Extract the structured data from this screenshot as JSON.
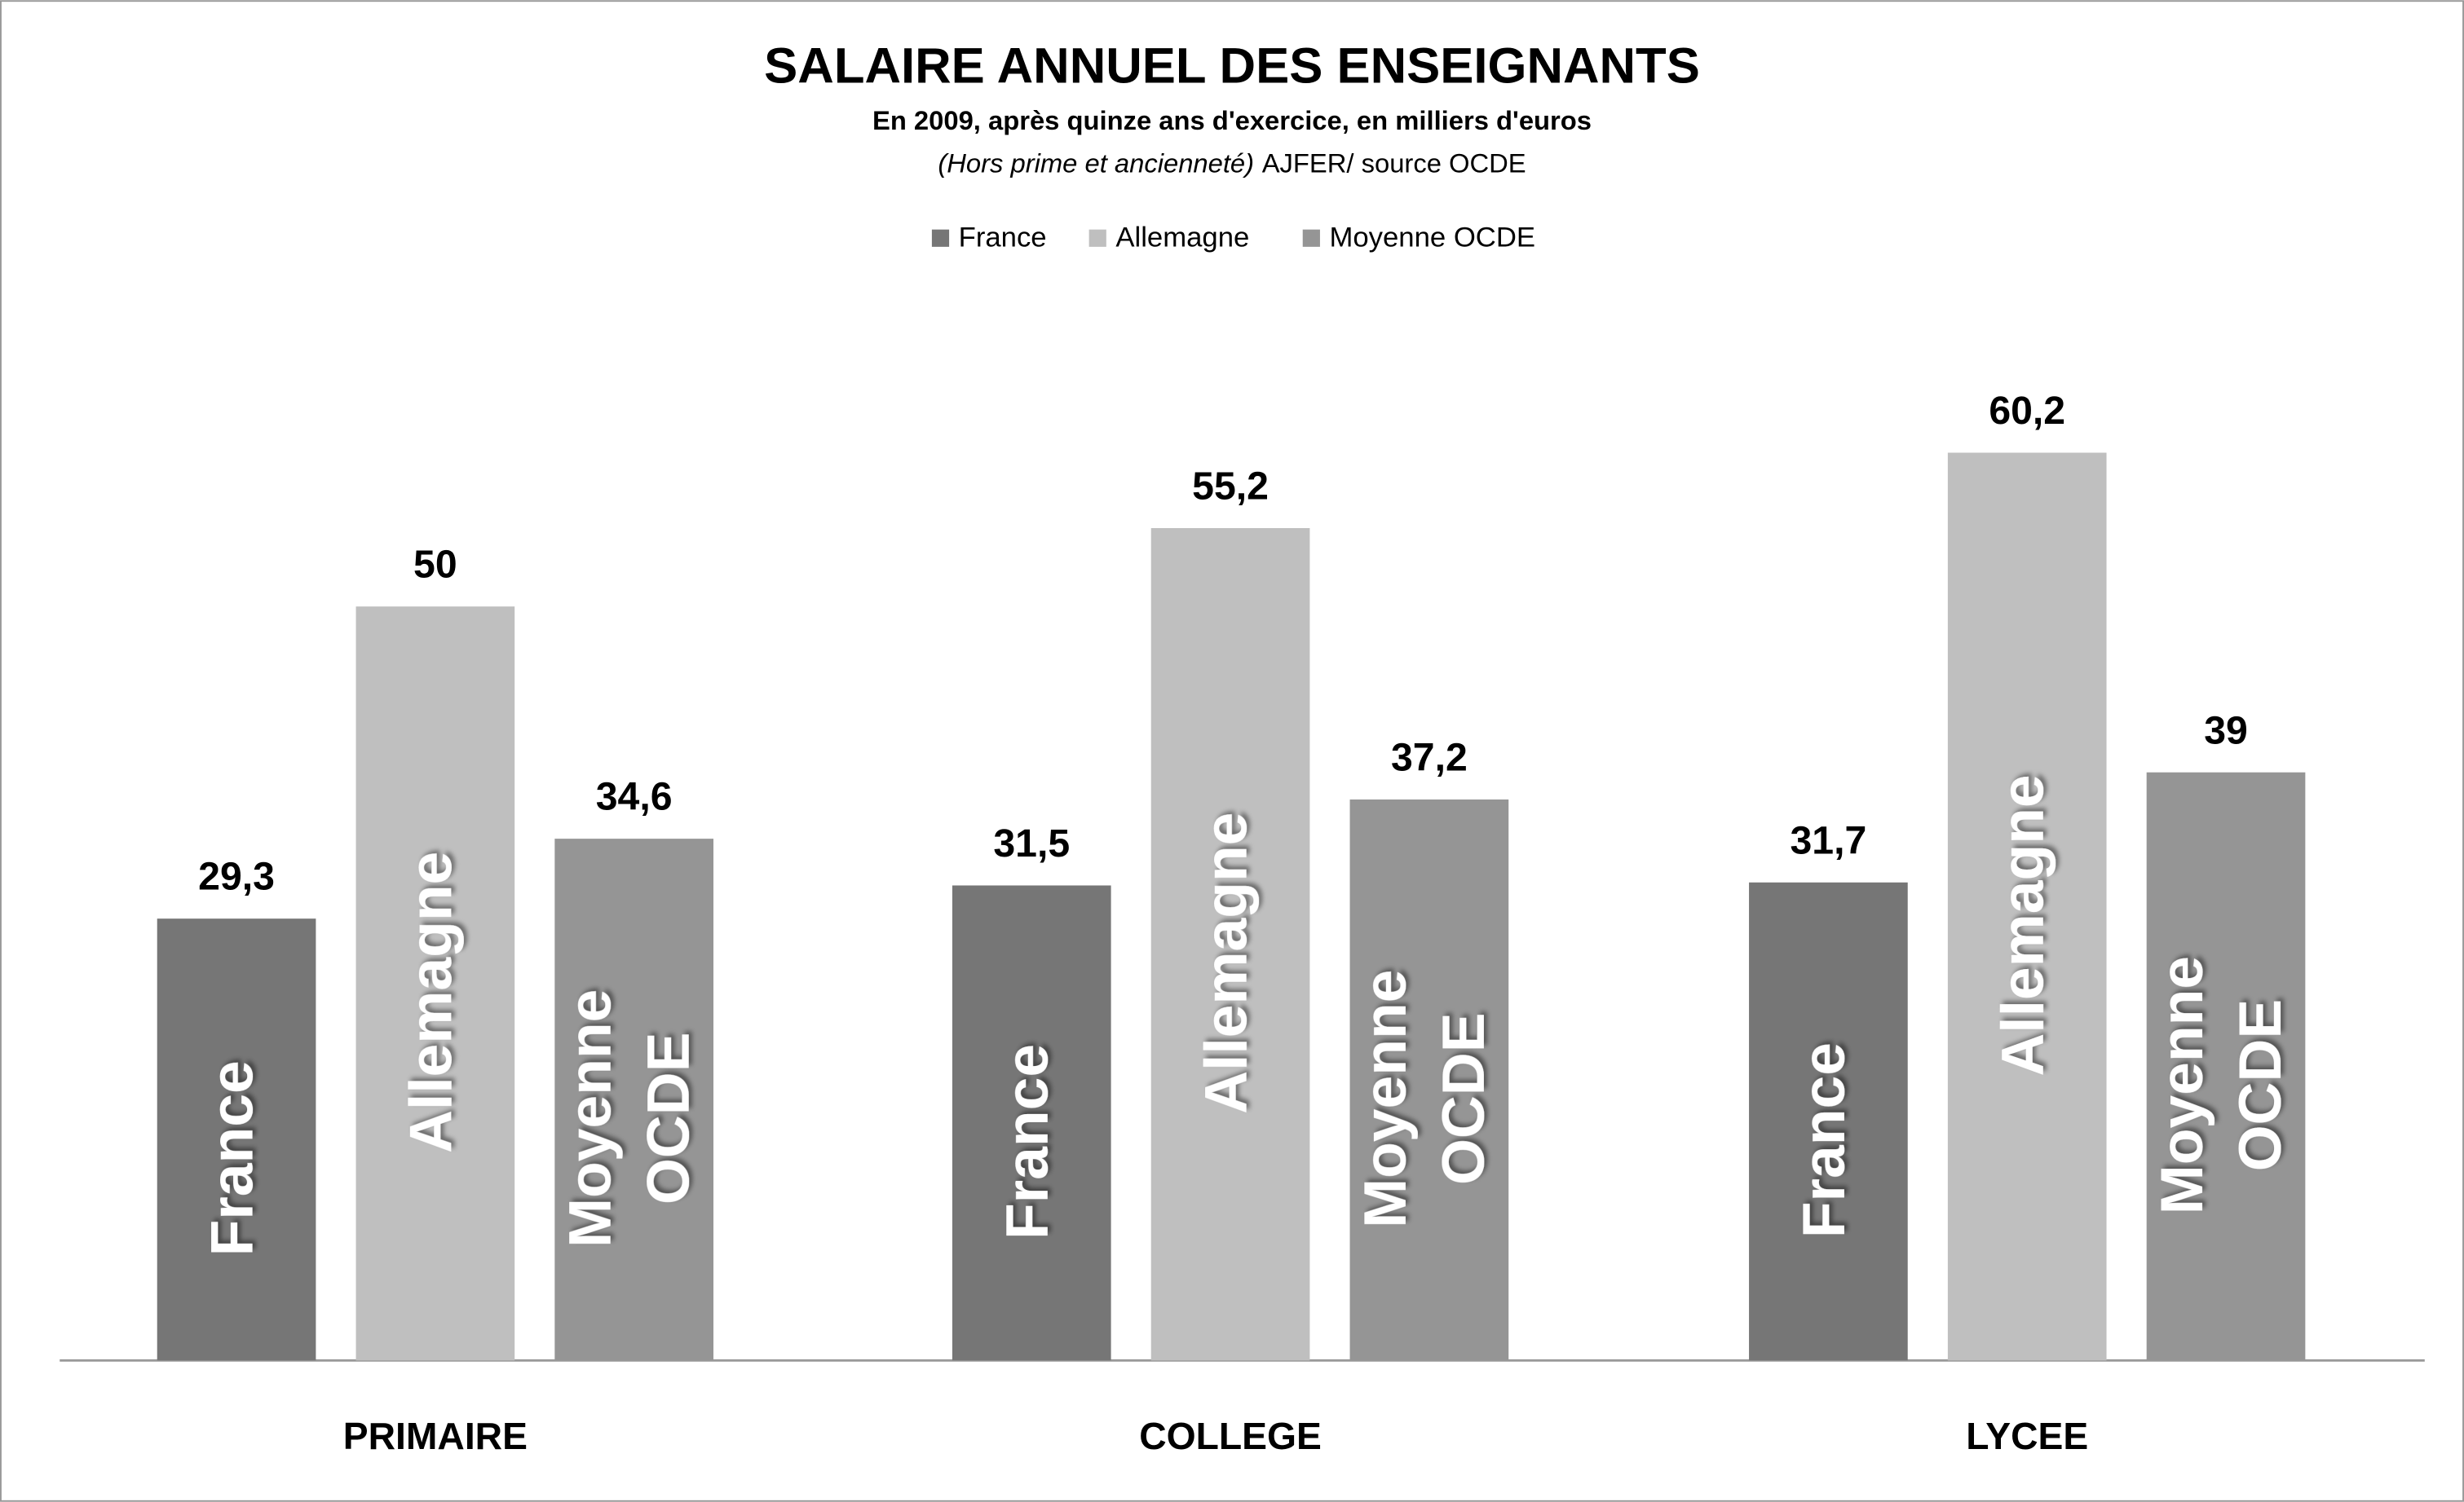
{
  "chart_data": {
    "type": "bar",
    "title": "SALAIRE ANNUEL DES ENSEIGNANTS",
    "subtitle": "En 2009, après quinze ans d'exercice, en milliers d'euros",
    "note": "(Hors prime et ancienneté)",
    "source": "AJFER/ source OCDE",
    "categories": [
      "PRIMAIRE",
      "COLLEGE",
      "LYCEE"
    ],
    "series": [
      {
        "name": "France",
        "color": "#767676",
        "values": [
          29.3,
          31.5,
          31.7
        ],
        "value_labels": [
          "29,3",
          "31,5",
          "31,7"
        ]
      },
      {
        "name": "Allemagne",
        "color": "#bfbfbf",
        "values": [
          50,
          55.2,
          60.2
        ],
        "value_labels": [
          "50",
          "55,2",
          "60,2"
        ]
      },
      {
        "name": "Moyenne OCDE",
        "color": "#959595",
        "values": [
          34.6,
          37.2,
          39
        ],
        "value_labels": [
          "34,6",
          "37,2",
          "39"
        ]
      }
    ],
    "ylim": [
      0,
      70
    ],
    "legend": "top"
  }
}
